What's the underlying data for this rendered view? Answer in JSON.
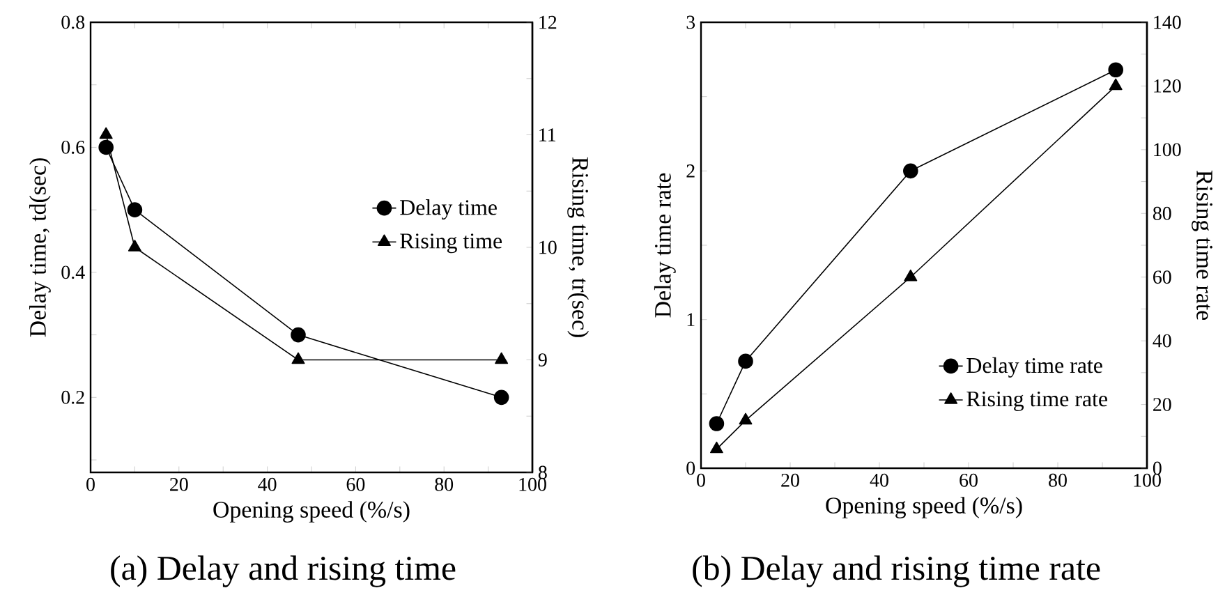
{
  "chart_data": [
    {
      "type": "line",
      "title": "(a) Delay and rising time",
      "xlabel": "Opening speed (%/s)",
      "ylabel": "Delay time, td(sec)",
      "y2label": "Rising time, tr(sec)",
      "xlim": [
        0,
        100
      ],
      "xticks": [
        0,
        {
          "value": 10,
          "label": null
        },
        20,
        {
          "value": 30,
          "label": null
        },
        40,
        {
          "value": 50,
          "label": null
        },
        60,
        {
          "value": 70,
          "label": null
        },
        80,
        {
          "value": 90,
          "label": null
        },
        100
      ],
      "ylim": [
        0.08,
        0.8
      ],
      "yticks": [
        {
          "value": 0.1,
          "label": null
        },
        0.2,
        {
          "value": 0.3,
          "label": null
        },
        0.4,
        {
          "value": 0.5,
          "label": null
        },
        0.6,
        {
          "value": 0.7,
          "label": null
        },
        0.8
      ],
      "y2lim": [
        8,
        12
      ],
      "y2ticks": [
        8,
        {
          "value": 8.5,
          "label": null
        },
        9,
        {
          "value": 9.5,
          "label": null
        },
        10,
        {
          "value": 10.5,
          "label": null
        },
        11,
        {
          "value": 11.5,
          "label": null
        },
        12
      ],
      "legend": "right",
      "line_style": "solid",
      "grid": false,
      "series": [
        {
          "name": "Delay time",
          "color": "#000000",
          "marker": "circle",
          "x": [
            3.5,
            10,
            47,
            93
          ],
          "values": [
            0.6,
            0.5,
            0.3,
            0.2
          ]
        },
        {
          "name": "Rising time",
          "color": "#000000",
          "marker": "triangle",
          "axis": "y2",
          "x": [
            3.5,
            10,
            47,
            93
          ],
          "values": [
            11,
            10,
            9,
            9
          ]
        }
      ]
    },
    {
      "type": "line",
      "title": "(b) Delay and rising time rate",
      "xlabel": "Opening speed (%/s)",
      "ylabel": "Delay time rate",
      "y2label": "Rising time rate",
      "xlim": [
        0,
        100
      ],
      "xticks": [
        0,
        {
          "value": 10,
          "label": null
        },
        20,
        {
          "value": 30,
          "label": null
        },
        40,
        {
          "value": 50,
          "label": null
        },
        60,
        {
          "value": 70,
          "label": null
        },
        80,
        {
          "value": 90,
          "label": null
        },
        100
      ],
      "ylim": [
        0,
        3
      ],
      "yticks": [
        0,
        {
          "value": 0.5,
          "label": null
        },
        1,
        {
          "value": 1.5,
          "label": null
        },
        2,
        {
          "value": 2.5,
          "label": null
        },
        3
      ],
      "y2lim": [
        0,
        140
      ],
      "y2ticks": [
        0,
        {
          "value": 10,
          "label": null
        },
        20,
        {
          "value": 30,
          "label": null
        },
        40,
        {
          "value": 50,
          "label": null
        },
        60,
        {
          "value": 70,
          "label": null
        },
        80,
        {
          "value": 90,
          "label": null
        },
        100,
        {
          "value": 110,
          "label": null
        },
        120,
        {
          "value": 130,
          "label": null
        },
        140
      ],
      "legend": "bottom right",
      "line_style": "solid",
      "grid": false,
      "series": [
        {
          "name": "Delay time rate",
          "color": "#000000",
          "marker": "circle",
          "x": [
            3.5,
            10,
            47,
            93
          ],
          "values": [
            0.3,
            0.72,
            2.0,
            2.68
          ]
        },
        {
          "name": "Rising time rate",
          "color": "#000000",
          "marker": "triangle",
          "axis": "y2",
          "x": [
            3.5,
            10,
            47,
            93
          ],
          "values": [
            6,
            15,
            60,
            120
          ]
        }
      ]
    }
  ]
}
